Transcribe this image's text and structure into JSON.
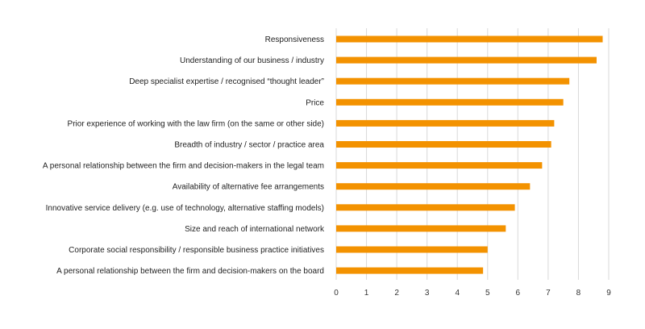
{
  "chart_data": {
    "type": "bar",
    "orientation": "horizontal",
    "title": "",
    "xlabel": "",
    "ylabel": "",
    "categories": [
      "Responsiveness",
      "Understanding of our business / industry",
      "Deep specialist expertise / recognised “thought leader”",
      "Price",
      "Prior experience of working with the law firm (on the same or other side)",
      "Breadth of industry / sector / practice area",
      "A personal relationship between the firm and decision-makers in the legal team",
      "Availability of alternative fee arrangements",
      "Innovative service delivery (e.g. use of technology, alternative staffing models)",
      "Size and reach of international network",
      "Corporate social responsibility / responsible business practice initiatives",
      "A personal relationship between the firm and decision-makers on the board"
    ],
    "values": [
      8.8,
      8.6,
      7.7,
      7.5,
      7.2,
      7.1,
      6.8,
      6.4,
      5.9,
      5.6,
      5.0,
      4.85
    ],
    "xlim": [
      0,
      9
    ],
    "xticks": [
      "0",
      "1",
      "2",
      "3",
      "4",
      "5",
      "6",
      "7",
      "8",
      "9"
    ],
    "grid": "vertical",
    "legend": "none",
    "colors": {
      "bar": "#F39200",
      "grid": "#D9D9D9",
      "text": "#222222"
    }
  }
}
